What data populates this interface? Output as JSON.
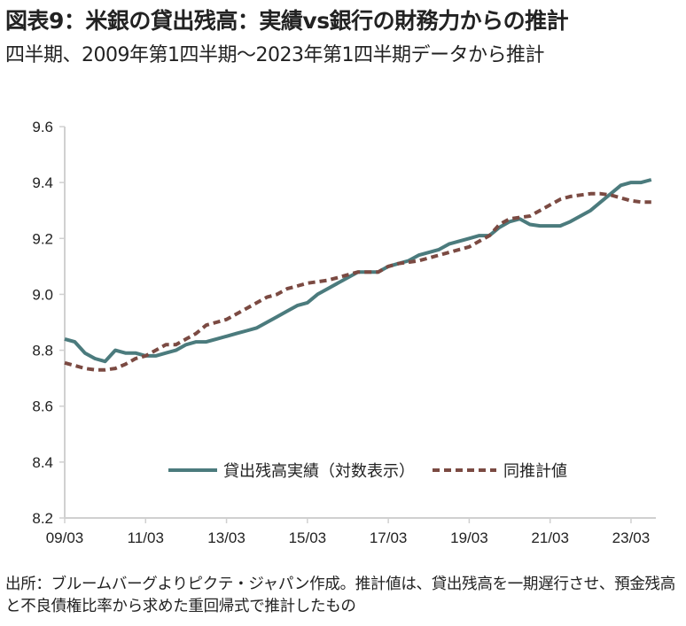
{
  "chart_data": {
    "type": "line",
    "title": "図表9：米銀の貸出残高：実績vs銀行の財務力からの推計",
    "subtitle": "四半期、2009年第1四半期～2023年第1四半期データから推計",
    "xlabel": "",
    "ylabel": "",
    "ylim": [
      8.2,
      9.6
    ],
    "yticks": [
      "8.2",
      "8.4",
      "8.6",
      "8.8",
      "9.0",
      "9.2",
      "9.4",
      "9.6"
    ],
    "xtick_labels": [
      "09/03",
      "11/03",
      "13/03",
      "15/03",
      "17/03",
      "19/03",
      "21/03",
      "23/03"
    ],
    "x_note": "quarter index from 2009Q1 (0 = 09/03)",
    "grid": false,
    "legend_position": "bottom-center",
    "series": [
      {
        "name": "貸出残高実績（対数表示）",
        "style": "solid",
        "color": "#4b7b7d",
        "values": [
          8.84,
          8.83,
          8.79,
          8.77,
          8.76,
          8.8,
          8.79,
          8.79,
          8.78,
          8.78,
          8.79,
          8.8,
          8.82,
          8.83,
          8.83,
          8.84,
          8.85,
          8.86,
          8.87,
          8.88,
          8.9,
          8.92,
          8.94,
          8.96,
          8.97,
          9.0,
          9.02,
          9.04,
          9.06,
          9.08,
          9.08,
          9.08,
          9.1,
          9.11,
          9.12,
          9.14,
          9.15,
          9.16,
          9.18,
          9.19,
          9.2,
          9.21,
          9.21,
          9.24,
          9.26,
          9.27,
          9.25,
          9.245,
          9.245,
          9.245,
          9.26,
          9.28,
          9.3,
          9.33,
          9.36,
          9.39,
          9.4,
          9.4,
          9.41
        ]
      },
      {
        "name": "同推計値",
        "style": "dashed",
        "color": "#7b4a42",
        "values": [
          8.755,
          8.745,
          8.735,
          8.73,
          8.73,
          8.735,
          8.75,
          8.77,
          8.78,
          8.8,
          8.82,
          8.82,
          8.84,
          8.86,
          8.89,
          8.9,
          8.91,
          8.93,
          8.95,
          8.97,
          8.99,
          9.0,
          9.02,
          9.03,
          9.04,
          9.045,
          9.05,
          9.06,
          9.07,
          9.08,
          9.08,
          9.08,
          9.1,
          9.11,
          9.115,
          9.12,
          9.13,
          9.14,
          9.15,
          9.16,
          9.17,
          9.19,
          9.21,
          9.25,
          9.27,
          9.275,
          9.28,
          9.3,
          9.32,
          9.34,
          9.35,
          9.355,
          9.36,
          9.36,
          9.355,
          9.345,
          9.335,
          9.33,
          9.33
        ]
      }
    ]
  },
  "source": "出所：ブルームバーグよりピクテ・ジャパン作成。推計値は、貸出残高を一期遅行させ、預金残高と不良債権比率から求めた重回帰式で推計したもの"
}
